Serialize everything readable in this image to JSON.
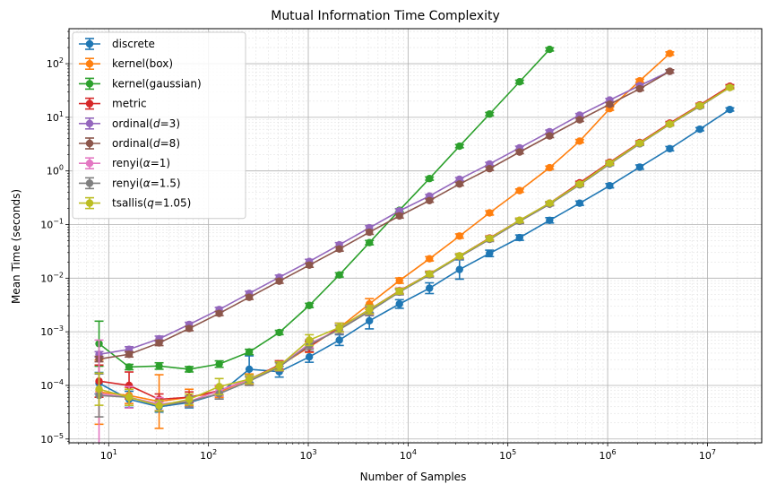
{
  "chart_data": {
    "type": "line",
    "title": "Mutual Information Time Complexity",
    "xlabel": "Number of Samples",
    "ylabel": "Mean Time (seconds)",
    "xscale": "log",
    "yscale": "log",
    "xlim": [
      4,
      35000000
    ],
    "ylim": [
      8.5e-06,
      450
    ],
    "grid": true,
    "legend": "upper-left",
    "x_ticks": [
      {
        "value": 10,
        "base": "10",
        "exp": "1"
      },
      {
        "value": 100,
        "base": "10",
        "exp": "2"
      },
      {
        "value": 1000,
        "base": "10",
        "exp": "3"
      },
      {
        "value": 10000,
        "base": "10",
        "exp": "4"
      },
      {
        "value": 100000,
        "base": "10",
        "exp": "5"
      },
      {
        "value": 1000000,
        "base": "10",
        "exp": "6"
      },
      {
        "value": 10000000,
        "base": "10",
        "exp": "7"
      }
    ],
    "y_ticks": [
      {
        "value": 1e-05,
        "base": "10",
        "exp": "−5"
      },
      {
        "value": 0.0001,
        "base": "10",
        "exp": "−4"
      },
      {
        "value": 0.001,
        "base": "10",
        "exp": "−3"
      },
      {
        "value": 0.01,
        "base": "10",
        "exp": "−2"
      },
      {
        "value": 0.1,
        "base": "10",
        "exp": "−1"
      },
      {
        "value": 1,
        "base": "10",
        "exp": "0"
      },
      {
        "value": 10,
        "base": "10",
        "exp": "1"
      },
      {
        "value": 100,
        "base": "10",
        "exp": "2"
      }
    ],
    "series": [
      {
        "name": "discrete",
        "label_main": "discrete",
        "label_sym": "",
        "label_rest": "",
        "color": "#1f77b4",
        "x": [
          8,
          16,
          32,
          64,
          128,
          256,
          512,
          1024,
          2048,
          4096,
          8192,
          16384,
          32768,
          65536,
          131072,
          262144,
          524288,
          1048576,
          2097152,
          4194304,
          8388608,
          16777216
        ],
        "y": [
          0.00011,
          5.5e-05,
          4e-05,
          4.8e-05,
          7e-05,
          0.0002,
          0.00018,
          0.00034,
          0.0007,
          0.0016,
          0.0033,
          0.0065,
          0.0145,
          0.029,
          0.057,
          0.12,
          0.25,
          0.53,
          1.18,
          2.6,
          6.0,
          14.0
        ],
        "err": [
          0.2,
          0.15,
          0.1,
          0.1,
          0.1,
          0.25,
          0.1,
          0.1,
          0.1,
          0.15,
          0.08,
          0.1,
          0.18,
          0.06,
          0.05,
          0.05,
          0.04,
          0.04,
          0.04,
          0.04,
          0.03,
          0.03
        ]
      },
      {
        "name": "kernel(box)",
        "label_main": "kernel(box)",
        "label_sym": "",
        "label_rest": "",
        "color": "#ff7f0e",
        "x": [
          8,
          16,
          32,
          64,
          128,
          256,
          512,
          1024,
          2048,
          4096,
          8192,
          16384,
          32768,
          65536,
          131072,
          262144,
          524288,
          1048576,
          2097152,
          4194304
        ],
        "y": [
          7.5e-05,
          6.5e-05,
          5e-05,
          6e-05,
          7.5e-05,
          0.00013,
          0.00023,
          0.00052,
          0.0012,
          0.0033,
          0.009,
          0.023,
          0.061,
          0.165,
          0.43,
          1.15,
          3.6,
          14.5,
          48.0,
          155.0
        ],
        "err": [
          0.6,
          0.15,
          0.5,
          0.15,
          0.1,
          0.1,
          0.08,
          0.1,
          0.08,
          0.1,
          0.05,
          0.04,
          0.04,
          0.04,
          0.03,
          0.03,
          0.03,
          0.03,
          0.03,
          0.03
        ]
      },
      {
        "name": "kernel(gaussian)",
        "label_main": "kernel(gaussian)",
        "label_sym": "",
        "label_rest": "",
        "color": "#2ca02c",
        "x": [
          8,
          16,
          32,
          64,
          128,
          256,
          512,
          1024,
          2048,
          4096,
          8192,
          16384,
          32768,
          65536,
          131072,
          262144
        ],
        "y": [
          0.0006,
          0.00022,
          0.00023,
          0.0002,
          0.00025,
          0.00042,
          0.00097,
          0.0031,
          0.0115,
          0.046,
          0.185,
          0.72,
          2.9,
          11.5,
          46.0,
          185.0
        ],
        "err": [
          0.42,
          0.05,
          0.06,
          0.05,
          0.06,
          0.05,
          0.04,
          0.04,
          0.04,
          0.04,
          0.03,
          0.03,
          0.03,
          0.03,
          0.03,
          0.03
        ]
      },
      {
        "name": "metric",
        "label_main": "metric",
        "label_sym": "",
        "label_rest": "",
        "color": "#d62728",
        "x": [
          8,
          16,
          32,
          64,
          128,
          256,
          512,
          1024,
          2048,
          4096,
          8192,
          16384,
          32768,
          65536,
          131072,
          262144,
          524288,
          1048576,
          2097152,
          4194304,
          8388608,
          16777216
        ],
        "y": [
          0.00012,
          0.0001,
          5.5e-05,
          6e-05,
          8e-05,
          0.00013,
          0.00024,
          0.00053,
          0.0012,
          0.0026,
          0.0058,
          0.012,
          0.026,
          0.056,
          0.12,
          0.25,
          0.6,
          1.45,
          3.4,
          7.8,
          17.0,
          38.0
        ],
        "err": [
          0.3,
          0.25,
          0.1,
          0.1,
          0.1,
          0.08,
          0.08,
          0.1,
          0.08,
          0.08,
          0.05,
          0.05,
          0.04,
          0.04,
          0.04,
          0.03,
          0.03,
          0.03,
          0.03,
          0.03,
          0.03,
          0.03
        ]
      },
      {
        "name": "ordinal(d=3)",
        "label_main": "ordinal(",
        "label_sym": "d",
        "label_rest": "=3)",
        "color": "#9467bd",
        "x": [
          8,
          16,
          32,
          64,
          128,
          256,
          512,
          1024,
          2048,
          4096,
          8192,
          16384,
          32768,
          65536,
          131072,
          262144,
          524288,
          1048576,
          2097152,
          4194304
        ],
        "y": [
          0.00038,
          0.00047,
          0.00074,
          0.00137,
          0.0026,
          0.0052,
          0.0104,
          0.0205,
          0.042,
          0.087,
          0.18,
          0.34,
          0.7,
          1.35,
          2.7,
          5.4,
          11.0,
          21.0,
          39.0,
          72.0
        ],
        "err": [
          0.05,
          0.05,
          0.05,
          0.04,
          0.04,
          0.04,
          0.04,
          0.04,
          0.04,
          0.04,
          0.04,
          0.03,
          0.03,
          0.03,
          0.03,
          0.03,
          0.03,
          0.03,
          0.03,
          0.03
        ]
      },
      {
        "name": "ordinal(d=8)",
        "label_main": "ordinal(",
        "label_sym": "d",
        "label_rest": "=8)",
        "color": "#8c564b",
        "x": [
          8,
          16,
          32,
          64,
          128,
          256,
          512,
          1024,
          2048,
          4096,
          8192,
          16384,
          32768,
          65536,
          131072,
          262144,
          524288,
          1048576,
          2097152,
          4194304
        ],
        "y": [
          0.00031,
          0.00038,
          0.00062,
          0.00115,
          0.0022,
          0.0044,
          0.0088,
          0.0175,
          0.035,
          0.072,
          0.145,
          0.28,
          0.57,
          1.1,
          2.25,
          4.5,
          9.0,
          17.5,
          34.0,
          72.0
        ],
        "err": [
          0.05,
          0.05,
          0.05,
          0.04,
          0.04,
          0.04,
          0.04,
          0.04,
          0.04,
          0.04,
          0.04,
          0.03,
          0.03,
          0.03,
          0.03,
          0.03,
          0.03,
          0.03,
          0.03,
          0.03
        ]
      },
      {
        "name": "renyi(α=1)",
        "label_main": "renyi(",
        "label_sym": "α",
        "label_rest": "=1)",
        "color": "#e377c2",
        "x": [
          8,
          16,
          32,
          64,
          128,
          256,
          512,
          1024,
          2048,
          4096,
          8192,
          16384,
          32768,
          65536,
          131072,
          262144
        ],
        "y": [
          7e-05,
          6e-05,
          4.5e-05,
          5e-05,
          8e-05,
          0.00013,
          0.00023,
          0.0006,
          0.0011,
          0.0025,
          0.0055,
          0.012,
          0.025,
          0.053,
          0.115,
          0.24
        ],
        "err": [
          1.0,
          0.2,
          0.12,
          0.1,
          0.1,
          0.08,
          0.08,
          0.08,
          0.08,
          0.08,
          0.05,
          0.04,
          0.04,
          0.04,
          0.04,
          0.03
        ]
      },
      {
        "name": "renyi(α=1.5)",
        "label_main": "renyi(",
        "label_sym": "α",
        "label_rest": "=1.5)",
        "color": "#7f7f7f",
        "x": [
          8,
          16,
          32,
          64,
          128,
          256,
          512,
          1024,
          2048,
          4096,
          8192,
          16384,
          32768,
          65536,
          131072,
          262144,
          524288,
          1048576,
          2097152,
          4194304,
          8388608,
          16777216
        ],
        "y": [
          6.5e-05,
          6e-05,
          4.2e-05,
          5e-05,
          7e-05,
          0.00012,
          0.00022,
          0.00057,
          0.0011,
          0.0024,
          0.0055,
          0.0115,
          0.025,
          0.053,
          0.115,
          0.24,
          0.55,
          1.35,
          3.2,
          7.4,
          16.0,
          36.0
        ],
        "err": [
          0.4,
          0.15,
          0.1,
          0.1,
          0.1,
          0.08,
          0.08,
          0.08,
          0.08,
          0.08,
          0.05,
          0.04,
          0.04,
          0.04,
          0.04,
          0.03,
          0.03,
          0.03,
          0.03,
          0.03,
          0.03,
          0.03
        ]
      },
      {
        "name": "tsallis(q=1.05)",
        "label_main": "tsallis(",
        "label_sym": "q",
        "label_rest": "=1.05)",
        "color": "#bcbd22",
        "x": [
          8,
          16,
          32,
          64,
          128,
          256,
          512,
          1024,
          2048,
          4096,
          8192,
          16384,
          32768,
          65536,
          131072,
          262144,
          524288,
          1048576,
          2097152,
          4194304,
          8388608,
          16777216
        ],
        "y": [
          8.5e-05,
          6e-05,
          4.2e-05,
          5.5e-05,
          9.5e-05,
          0.00013,
          0.00023,
          0.0007,
          0.0012,
          0.0026,
          0.0057,
          0.012,
          0.026,
          0.055,
          0.12,
          0.25,
          0.57,
          1.4,
          3.3,
          7.5,
          16.5,
          36.0
        ],
        "err": [
          0.3,
          0.15,
          0.1,
          0.1,
          0.15,
          0.08,
          0.08,
          0.1,
          0.08,
          0.08,
          0.05,
          0.04,
          0.04,
          0.04,
          0.04,
          0.03,
          0.03,
          0.03,
          0.03,
          0.03,
          0.03,
          0.03
        ]
      }
    ]
  }
}
